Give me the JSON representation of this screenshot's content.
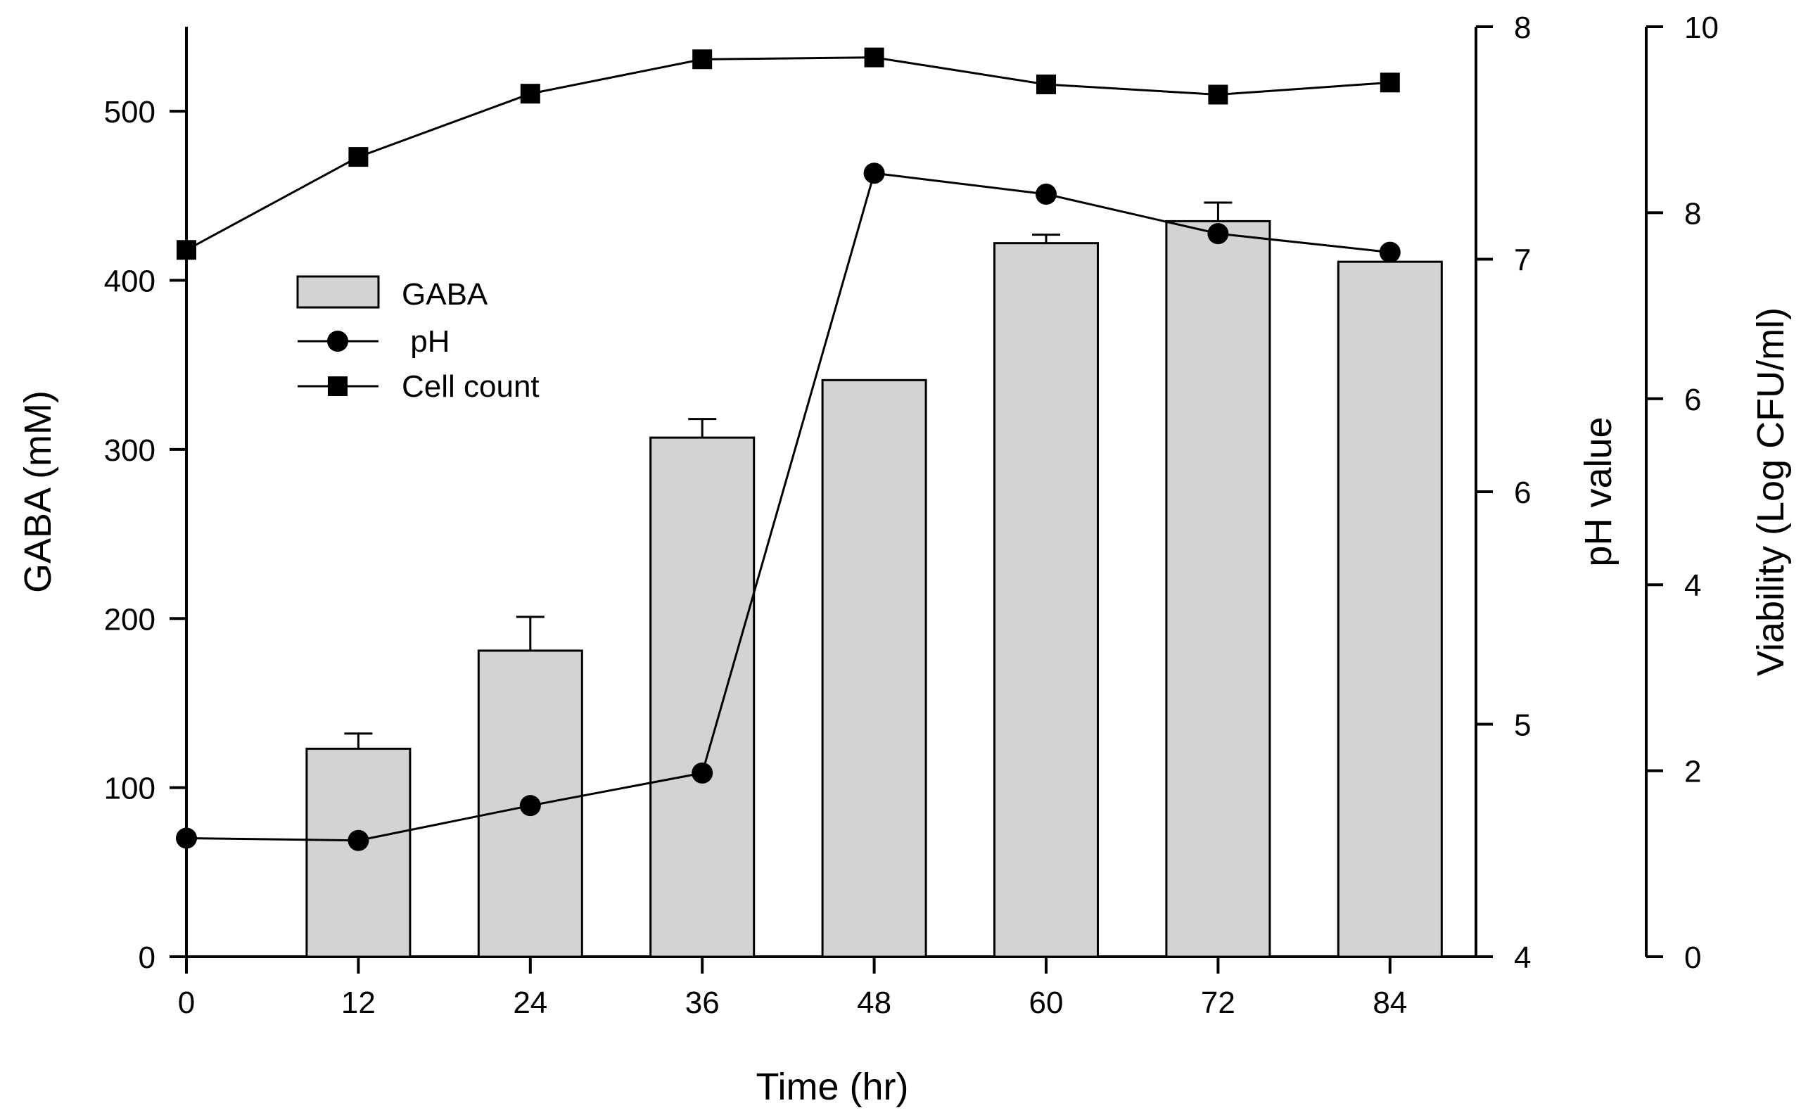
{
  "chart_data": {
    "type": "bar+line",
    "x_label": "Time (hr)",
    "x_ticks": [
      0,
      12,
      24,
      36,
      48,
      60,
      72,
      84
    ],
    "x_range": [
      0,
      90
    ],
    "axes": {
      "left": {
        "label": "GABA (mM)",
        "range": [
          0,
          550
        ],
        "ticks": [
          0,
          100,
          200,
          300,
          400,
          500
        ]
      },
      "right1": {
        "label": "pH value",
        "range": [
          4,
          8
        ],
        "ticks": [
          4,
          5,
          6,
          7,
          8
        ]
      },
      "right2": {
        "label": "Viability (Log CFU/ml)",
        "range": [
          0,
          10
        ],
        "ticks": [
          0,
          2,
          4,
          6,
          8,
          10
        ]
      }
    },
    "series": [
      {
        "name": "GABA",
        "legend_label": "GABA",
        "kind": "bar",
        "axis": "left",
        "color": "#d3d3d3",
        "x": [
          12,
          24,
          36,
          48,
          60,
          72,
          84
        ],
        "values": [
          123,
          181,
          307,
          341,
          422,
          435,
          411
        ],
        "errors": [
          9,
          20,
          11,
          0,
          5,
          11,
          0
        ]
      },
      {
        "name": "pH",
        "legend_label": " pH",
        "kind": "line",
        "marker": "circle",
        "axis": "right1",
        "x": [
          0,
          12,
          24,
          36,
          48,
          60,
          72,
          84
        ],
        "values": [
          4.51,
          4.5,
          4.65,
          4.79,
          7.37,
          7.28,
          7.11,
          7.03
        ]
      },
      {
        "name": "Cell count",
        "legend_label": "Cell count",
        "kind": "line",
        "marker": "square",
        "axis": "right2",
        "x": [
          0,
          12,
          24,
          36,
          48,
          60,
          72,
          84
        ],
        "values": [
          7.6,
          8.6,
          9.28,
          9.65,
          9.67,
          9.38,
          9.27,
          9.4
        ]
      }
    ],
    "legend": {
      "position": "upper-left"
    }
  }
}
